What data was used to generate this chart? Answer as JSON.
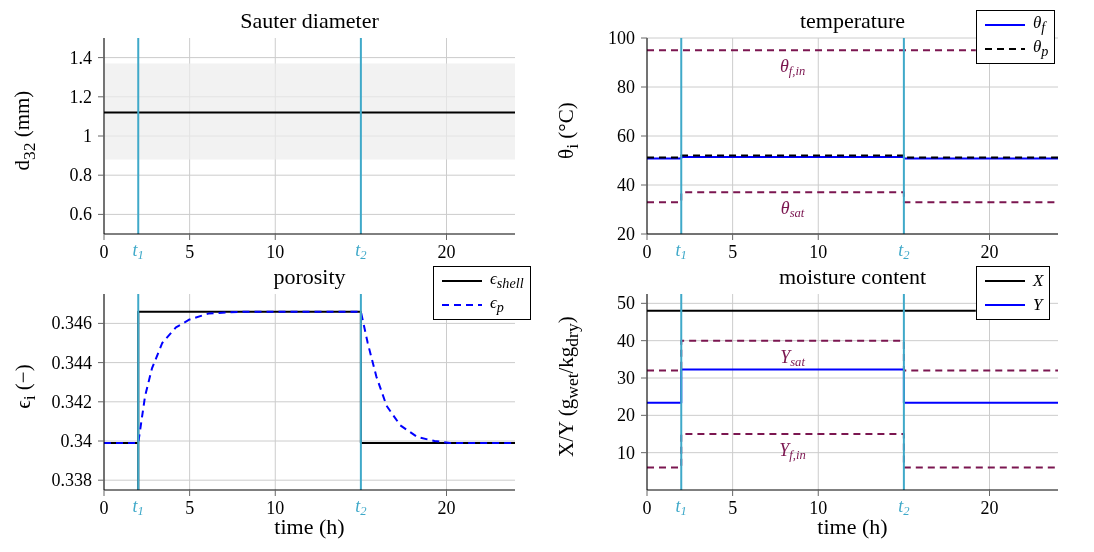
{
  "chart_data": [
    {
      "type": "line",
      "title": "Sauter diameter",
      "ylabel": "d$_{32}$ (mm)",
      "xlim": [
        0,
        24
      ],
      "xticks": [
        0,
        5,
        10,
        20
      ],
      "ylim": [
        0.5,
        1.5
      ],
      "yticks": [
        0.6,
        0.8,
        1,
        1.2,
        1.4
      ],
      "grid": true,
      "marker": "none",
      "ref_lines": [
        {
          "axis": "x",
          "value": 2,
          "label": "t$_{1}$",
          "color": "#3fa9c9"
        },
        {
          "axis": "x",
          "value": 15,
          "label": "t$_{2}$",
          "color": "#3fa9c9"
        }
      ],
      "series": [
        {
          "color": "#000000",
          "line_style": "solid",
          "x": [
            0,
            24
          ],
          "values": [
            1.12,
            1.12
          ],
          "lower": [
            0.88,
            0.88
          ],
          "upper": [
            1.37,
            1.37
          ]
        }
      ]
    },
    {
      "type": "line",
      "title": "temperature",
      "ylabel": "θ$_{i}$ (°C)",
      "xlim": [
        0,
        24
      ],
      "xticks": [
        0,
        5,
        10,
        20
      ],
      "ylim": [
        20,
        100
      ],
      "yticks": [
        20,
        40,
        60,
        80,
        100
      ],
      "grid": true,
      "marker": "none",
      "legend": "top right",
      "ref_lines": [
        {
          "axis": "x",
          "value": 2,
          "label": "t$_{1}$",
          "color": "#3fa9c9"
        },
        {
          "axis": "x",
          "value": 15,
          "label": "t$_{2}$",
          "color": "#3fa9c9"
        }
      ],
      "series": [
        {
          "name": "θ$_{f}$",
          "color": "#0000ff",
          "line_style": "solid",
          "x": [
            0,
            2,
            2,
            15,
            15,
            24
          ],
          "values": [
            50.8,
            50.8,
            51.4,
            51.4,
            50.8,
            50.8
          ]
        },
        {
          "name": "θ$_{p}$",
          "color": "#000000",
          "line_style": "dashed",
          "x": [
            0,
            2,
            2,
            15,
            15,
            24
          ],
          "values": [
            51.2,
            51.2,
            52,
            52,
            51.2,
            51.2
          ]
        },
        {
          "color": "#7b1650",
          "line_style": "dashed",
          "x": [
            0,
            19.2
          ],
          "values": [
            95,
            95
          ]
        },
        {
          "color": "#7b1650",
          "line_style": "dashed",
          "x": [
            0,
            2,
            2,
            15,
            15,
            24
          ],
          "values": [
            33,
            33,
            37,
            37,
            33,
            33
          ]
        }
      ],
      "annotations": [
        "θ$_{f,in}$",
        "θ$_{sat}$"
      ]
    },
    {
      "type": "line",
      "title": "porosity",
      "xlabel": "time (h)",
      "ylabel": "ϵ$_{i}$ (−)",
      "xlim": [
        0,
        24
      ],
      "xticks": [
        0,
        5,
        10,
        20
      ],
      "ylim": [
        0.3375,
        0.3475
      ],
      "yticks": [
        0.338,
        0.34,
        0.342,
        0.344,
        0.346
      ],
      "grid": true,
      "marker": "none",
      "legend": "top right",
      "ref_lines": [
        {
          "axis": "x",
          "value": 2,
          "label": "t$_{1}$",
          "color": "#3fa9c9"
        },
        {
          "axis": "x",
          "value": 15,
          "label": "t$_{2}$",
          "color": "#3fa9c9"
        }
      ],
      "series": [
        {
          "name": "ϵ$_{shell}$",
          "color": "#000000",
          "line_style": "solid",
          "x": [
            0,
            2,
            2,
            2,
            15,
            15,
            24
          ],
          "values": [
            0.3399,
            0.3399,
            0.3375,
            0.3466,
            0.3466,
            0.3399,
            0.3399
          ]
        },
        {
          "name": "ϵ$_{p}$",
          "color": "#0000ff",
          "line_style": "dashed",
          "x": [
            0,
            2,
            2.4,
            2.8,
            3.4,
            4.2,
            5,
            6.1,
            8.1,
            15,
            15.4,
            15.9,
            16.5,
            17.3,
            18.3,
            19.3,
            20.2,
            24
          ],
          "values": [
            0.3399,
            0.3399,
            0.3423,
            0.3437,
            0.345,
            0.3458,
            0.3462,
            0.3465,
            0.3466,
            0.3466,
            0.345,
            0.3433,
            0.3418,
            0.3408,
            0.3402,
            0.34,
            0.3399,
            0.3399
          ]
        }
      ]
    },
    {
      "type": "line",
      "title": "moisture content",
      "xlabel": "time (h)",
      "ylabel": "X/Y (g$_{wet}$/kg$_{dry}$)",
      "xlim": [
        0,
        24
      ],
      "xticks": [
        0,
        5,
        10,
        20
      ],
      "ylim": [
        0,
        52.5
      ],
      "yticks": [
        10,
        20,
        30,
        40,
        50
      ],
      "grid": true,
      "marker": "none",
      "legend": "top right",
      "ref_lines": [
        {
          "axis": "x",
          "value": 2,
          "label": "t$_{1}$",
          "color": "#3fa9c9"
        },
        {
          "axis": "x",
          "value": 15,
          "label": "t$_{2}$",
          "color": "#3fa9c9"
        }
      ],
      "series": [
        {
          "name": "X",
          "color": "#000000",
          "line_style": "solid",
          "x": [
            0,
            19.2
          ],
          "values": [
            48,
            48
          ]
        },
        {
          "name": "Y",
          "color": "#0000ff",
          "line_style": "solid",
          "x": [
            0,
            2,
            2,
            15,
            15,
            24
          ],
          "values": [
            23.4,
            23.4,
            32.3,
            32.3,
            23.4,
            23.4
          ]
        },
        {
          "color": "#7b1650",
          "line_style": "dashed",
          "x": [
            0,
            2,
            2,
            15,
            15,
            24
          ],
          "values": [
            32,
            32,
            40,
            40,
            32,
            32
          ]
        },
        {
          "color": "#7b1650",
          "line_style": "dashed",
          "x": [
            0,
            2,
            2,
            15,
            15,
            24
          ],
          "values": [
            6,
            6,
            15,
            15,
            6,
            6
          ]
        }
      ],
      "annotations": [
        "Y$_{sat}$",
        "Y$_{f,in}$"
      ]
    }
  ]
}
